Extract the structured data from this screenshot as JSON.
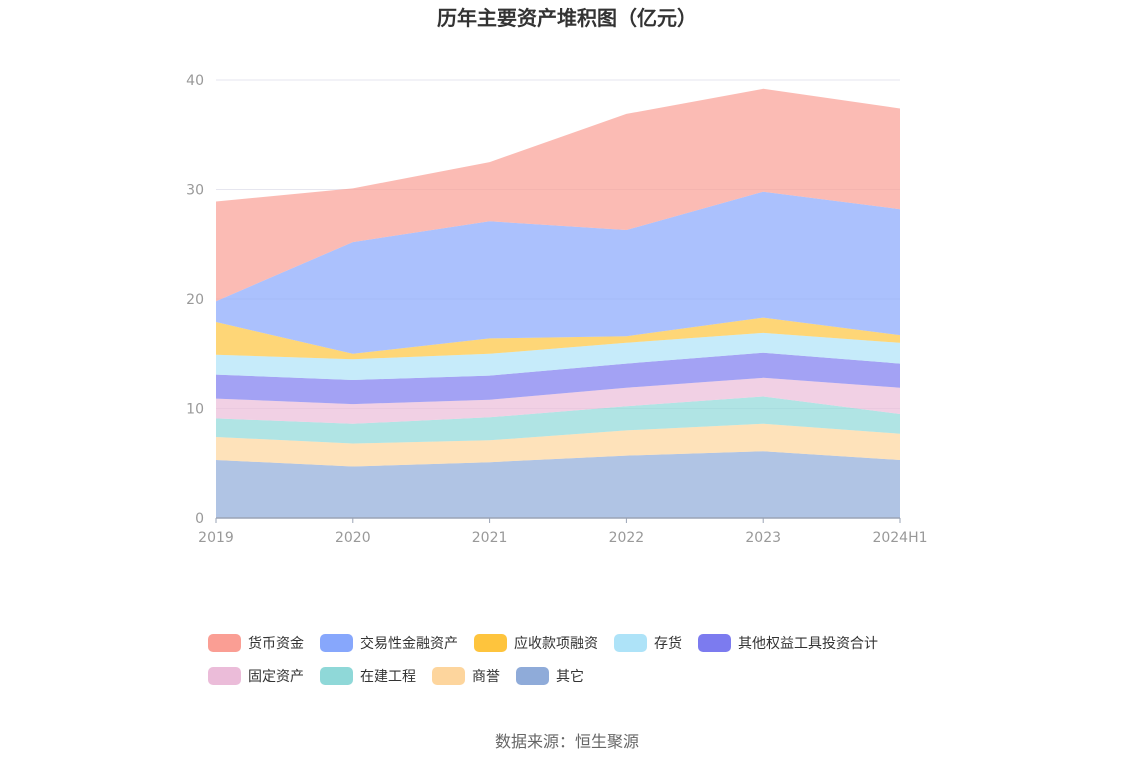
{
  "chart_data": {
    "type": "area",
    "stacked": true,
    "title": "历年主要资产堆积图（亿元）",
    "categories": [
      "2019",
      "2020",
      "2021",
      "2022",
      "2023",
      "2024H1"
    ],
    "ylim": [
      0,
      40
    ],
    "yticks": [
      "0",
      "10",
      "20",
      "30",
      "40"
    ],
    "grid": true,
    "legend_position": "bottom",
    "series": [
      {
        "name": "其它",
        "color": "#8fabd9",
        "values": [
          5.3,
          4.7,
          5.1,
          5.7,
          6.1,
          5.3
        ]
      },
      {
        "name": "商誉",
        "color": "#fdd59d",
        "values": [
          2.1,
          2.1,
          2.0,
          2.3,
          2.5,
          2.4
        ]
      },
      {
        "name": "在建工程",
        "color": "#8fd8d8",
        "values": [
          1.7,
          1.8,
          2.1,
          2.2,
          2.5,
          1.8
        ]
      },
      {
        "name": "固定资产",
        "color": "#ebbcd9",
        "values": [
          1.8,
          1.8,
          1.6,
          1.7,
          1.7,
          2.4
        ]
      },
      {
        "name": "其他权益工具投资合计",
        "color": "#7c7bef",
        "values": [
          2.2,
          2.2,
          2.2,
          2.2,
          2.3,
          2.2
        ]
      },
      {
        "name": "存货",
        "color": "#aee3f8",
        "values": [
          1.8,
          1.9,
          2.0,
          1.9,
          1.8,
          1.9
        ]
      },
      {
        "name": "应收款项融资",
        "color": "#fec43d",
        "values": [
          3.0,
          0.5,
          1.4,
          0.6,
          1.4,
          0.7
        ]
      },
      {
        "name": "交易性金融资产",
        "color": "#87a7fc",
        "values": [
          1.9,
          10.2,
          10.7,
          9.7,
          11.5,
          11.5
        ]
      },
      {
        "name": "货币资金",
        "color": "#fa9e94",
        "values": [
          9.1,
          4.9,
          5.4,
          10.6,
          9.4,
          9.2
        ]
      }
    ],
    "legend_order": [
      "货币资金",
      "交易性金融资产",
      "应收款项融资",
      "存货",
      "其他权益工具投资合计",
      "固定资产",
      "在建工程",
      "商誉",
      "其它"
    ]
  },
  "footer": {
    "source": "数据来源：恒生聚源"
  }
}
